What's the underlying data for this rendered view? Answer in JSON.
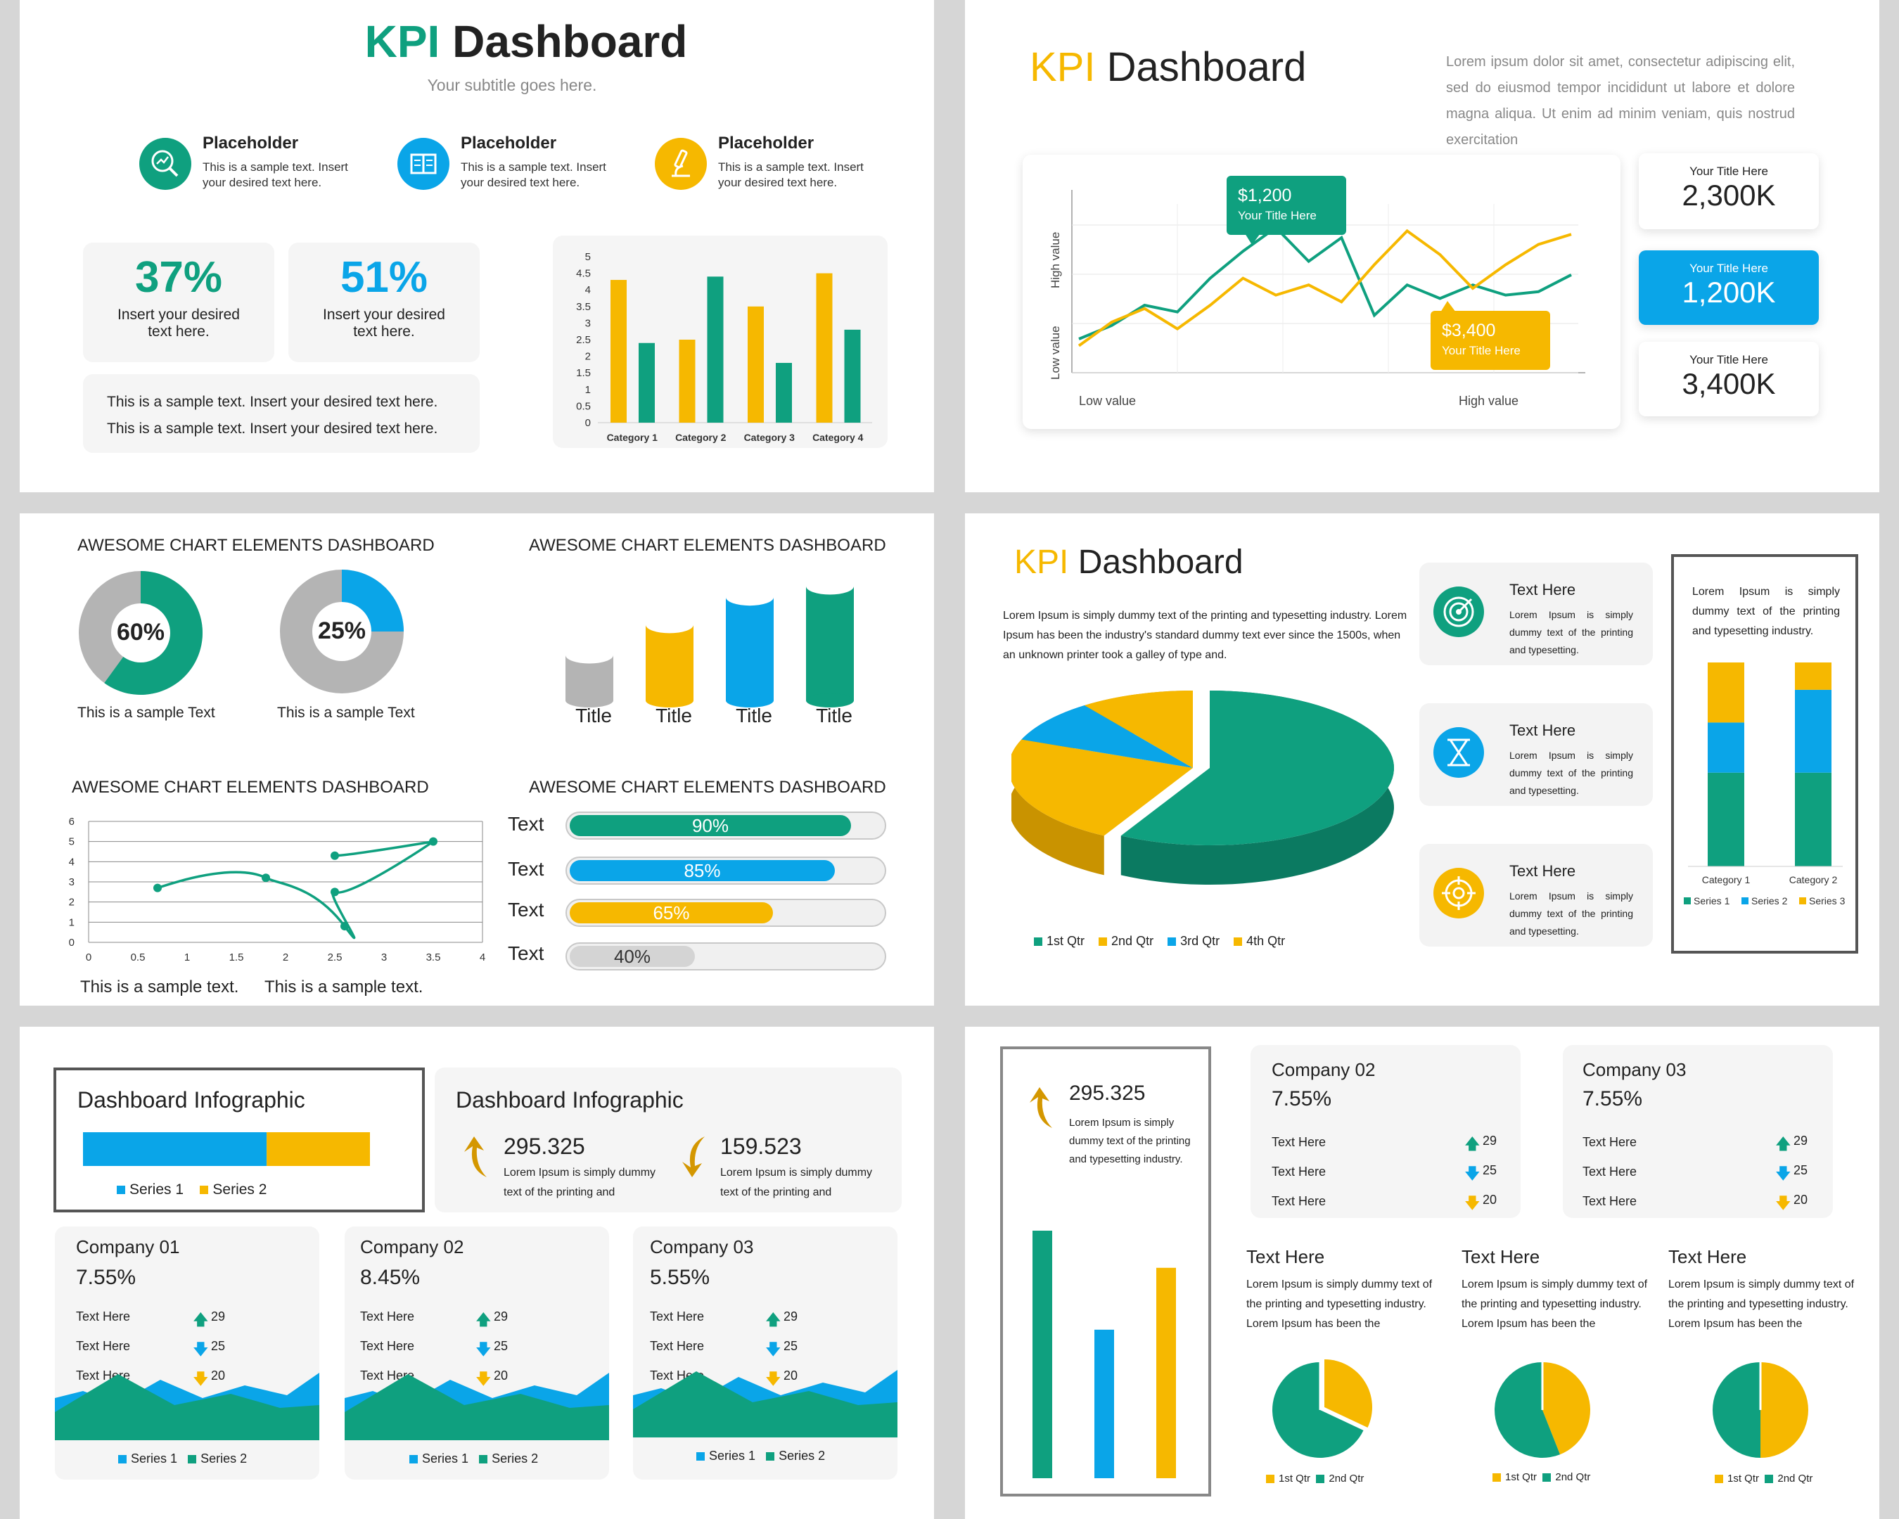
{
  "colors": {
    "green": "#0fa07f",
    "yellow": "#f6b800",
    "blue": "#0aa5e8",
    "gray": "#b4b4b4",
    "dark": "#222222"
  },
  "s1": {
    "title_accent": "KPI",
    "title_rest": "Dashboard",
    "subtitle": "Your subtitle goes here.",
    "placeholders": [
      {
        "icon": "magnifier-chart-icon",
        "title": "Placeholder",
        "text1": "This is a sample text. Insert",
        "text2": "your desired text here."
      },
      {
        "icon": "book-icon",
        "title": "Placeholder",
        "text1": "This is a sample text. Insert",
        "text2": "your desired text here."
      },
      {
        "icon": "microscope-icon",
        "title": "Placeholder",
        "text1": "This is a sample text. Insert",
        "text2": "your desired text here."
      }
    ],
    "stats": [
      {
        "value": "37%",
        "line1": "Insert your desired",
        "line2": "text here."
      },
      {
        "value": "51%",
        "line1": "Insert your desired",
        "line2": "text here."
      }
    ],
    "note1": "This is a sample text. Insert your desired text here.",
    "note2": "This is a sample text. Insert your desired text here."
  },
  "s2": {
    "title_accent": "KPI",
    "title_rest": "Dashboard",
    "lorem": "Lorem ipsum dolor sit amet, consectetur adipiscing elit, sed do eiusmod tempor incididunt ut labore et dolore magna aliqua. Ut enim ad minim veniam, quis nostrud exercitation",
    "callout1": {
      "value": "$1,200",
      "label": "Your Title Here"
    },
    "callout2": {
      "value": "$3,400",
      "label": "Your Title Here"
    },
    "ylabel_high": "High value",
    "ylabel_low": "Low value",
    "xlabel_low": "Low value",
    "xlabel_high": "High value",
    "kpis": [
      {
        "label": "Your Title Here",
        "value": "2,300K"
      },
      {
        "label": "Your Title Here",
        "value": "1,200K"
      },
      {
        "label": "Your Title Here",
        "value": "3,400K"
      }
    ]
  },
  "s3": {
    "heading1": "AWESOME CHART ELEMENTS DASHBOARD",
    "heading2": "AWESOME CHART ELEMENTS DASHBOARD",
    "heading3": "AWESOME CHART ELEMENTS DASHBOARD",
    "heading4": "AWESOME CHART ELEMENTS DASHBOARD",
    "donuts": [
      {
        "label": "60%",
        "value": 0.6,
        "caption": "This is a sample Text"
      },
      {
        "label": "25%",
        "value": 0.25,
        "caption": "This is a sample Text"
      }
    ],
    "cylinder_titles": [
      "Title",
      "Title",
      "Title",
      "Title"
    ],
    "scatter_caption1": "This is a sample text.",
    "scatter_caption2": "This is a sample text.",
    "bars": [
      {
        "label": "Text",
        "value": "90%",
        "pct": 0.9
      },
      {
        "label": "Text",
        "value": "85%",
        "pct": 0.85
      },
      {
        "label": "Text",
        "value": "65%",
        "pct": 0.65
      },
      {
        "label": "Text",
        "value": "40%",
        "pct": 0.4
      }
    ]
  },
  "s4": {
    "title_accent": "KPI",
    "title_rest": "Dashboard",
    "intro": "Lorem Ipsum is simply dummy text of the printing and typesetting industry. Lorem Ipsum has been the industry's standard dummy text ever since the 1500s, when an unknown printer took a galley of type and.",
    "items": [
      {
        "icon": "target-icon",
        "title": "Text Here",
        "text": "Lorem Ipsum is simply dummy text of the printing and typesetting."
      },
      {
        "icon": "hourglass-icon",
        "title": "Text Here",
        "text": "Lorem Ipsum is simply dummy text of the printing and typesetting."
      },
      {
        "icon": "crosshair-icon",
        "title": "Text Here",
        "text": "Lorem Ipsum is simply dummy text of the printing and typesetting."
      }
    ],
    "side_text": "Lorem Ipsum is simply dummy text of the printing and typesetting industry."
  },
  "s5": {
    "box1_title": "Dashboard Infographic",
    "box2_title": "Dashboard Infographic",
    "metric1": {
      "value": "295.325",
      "text": "Lorem Ipsum is simply dummy text of the printing and"
    },
    "metric2": {
      "value": "159.523",
      "text": "Lorem Ipsum is simply dummy text of the printing and"
    },
    "companies": [
      {
        "name": "Company 01",
        "pct": "7.55%",
        "rows": [
          {
            "label": "Text Here",
            "val": "29"
          },
          {
            "label": "Text Here",
            "val": "25"
          },
          {
            "label": "Text Here",
            "val": "20"
          }
        ]
      },
      {
        "name": "Company 02",
        "pct": "8.45%",
        "rows": [
          {
            "label": "Text Here",
            "val": "29"
          },
          {
            "label": "Text Here",
            "val": "25"
          },
          {
            "label": "Text Here",
            "val": "20"
          }
        ]
      },
      {
        "name": "Company 03",
        "pct": "5.55%",
        "rows": [
          {
            "label": "Text Here",
            "val": "29"
          },
          {
            "label": "Text Here",
            "val": "25"
          },
          {
            "label": "Text Here",
            "val": "20"
          }
        ]
      }
    ],
    "legend_s1": "Series 1",
    "legend_s2": "Series 2"
  },
  "s6": {
    "left_value": "295.325",
    "left_text": "Lorem Ipsum is simply dummy text of the printing and typesetting industry.",
    "companies": [
      {
        "name": "Company 02",
        "pct": "7.55%",
        "rows": [
          {
            "label": "Text Here",
            "val": "29"
          },
          {
            "label": "Text Here",
            "val": "25"
          },
          {
            "label": "Text Here",
            "val": "20"
          }
        ]
      },
      {
        "name": "Company 03",
        "pct": "7.55%",
        "rows": [
          {
            "label": "Text Here",
            "val": "29"
          },
          {
            "label": "Text Here",
            "val": "25"
          },
          {
            "label": "Text Here",
            "val": "20"
          }
        ]
      }
    ],
    "text_blocks": [
      {
        "title": "Text Here",
        "text": "Lorem Ipsum is simply dummy text of the printing and typesetting industry. Lorem Ipsum has been the"
      },
      {
        "title": "Text Here",
        "text": "Lorem Ipsum is simply dummy text of the printing and typesetting industry. Lorem Ipsum has been the"
      },
      {
        "title": "Text Here",
        "text": "Lorem Ipsum is simply dummy text of the printing and typesetting industry. Lorem Ipsum has been the"
      }
    ],
    "pie_legend1": "1st Qtr",
    "pie_legend2": "2nd Qtr"
  },
  "chart_data": [
    {
      "id": "s1-bar",
      "type": "bar",
      "categories": [
        "Category 1",
        "Category 2",
        "Category 3",
        "Category 4"
      ],
      "series": [
        {
          "values": [
            4.3,
            2.5,
            3.5,
            4.5
          ],
          "color": "#f6b800"
        },
        {
          "values": [
            2.4,
            4.4,
            1.8,
            2.8
          ],
          "color": "#0fa07f"
        }
      ],
      "ylim": [
        0,
        5
      ],
      "yticks": [
        "5",
        "4.5",
        "4",
        "3.5",
        "3",
        "2.5",
        "2",
        "1.5",
        "1",
        "0.5",
        "0"
      ]
    },
    {
      "id": "s2-line",
      "type": "line",
      "series": [
        {
          "color": "#0fa07f",
          "values": [
            2,
            2.8,
            4,
            3.6,
            5.6,
            7.2,
            8.6,
            6.6,
            8,
            3.4,
            5.2,
            4.4,
            5.2,
            4.6,
            4.8,
            5.8
          ]
        },
        {
          "color": "#f6b800",
          "values": [
            1.6,
            3,
            3.8,
            2.6,
            4,
            5.6,
            4.6,
            5.2,
            4.2,
            6.4,
            8.4,
            7,
            5,
            6.4,
            7.6,
            8.2
          ]
        }
      ]
    },
    {
      "id": "s3-cylinders",
      "type": "bar",
      "categories": [
        "Title",
        "Title",
        "Title",
        "Title"
      ],
      "values": [
        0.38,
        0.6,
        0.8,
        0.88
      ],
      "colors": [
        "#b4b4b4",
        "#f6b800",
        "#0aa5e8",
        "#0fa07f"
      ]
    },
    {
      "id": "s3-scatter",
      "type": "scatter",
      "points": [
        [
          0.7,
          2.7
        ],
        [
          1.8,
          3.2
        ],
        [
          2.5,
          2.5
        ],
        [
          2.6,
          0.8
        ],
        [
          2.5,
          4.3
        ],
        [
          3.5,
          5.0
        ]
      ],
      "xticks": [
        "0",
        "0.5",
        "1",
        "1.5",
        "2",
        "2.5",
        "3",
        "3.5",
        "4"
      ],
      "yticks": [
        "6",
        "5",
        "4",
        "3",
        "2",
        "1",
        "0"
      ],
      "xlim": [
        0,
        4
      ],
      "ylim": [
        0,
        6
      ]
    },
    {
      "id": "s4-pie",
      "type": "pie",
      "labels": [
        "1st Qtr",
        "2nd Qtr",
        "3rd Qtr",
        "4th Qtr"
      ],
      "values": [
        58,
        23,
        9,
        10
      ],
      "colors": [
        "#0fa07f",
        "#f6b800",
        "#0aa5e8",
        "#f6b800"
      ]
    },
    {
      "id": "s4-stacked",
      "type": "bar",
      "categories": [
        "Category 1",
        "Category 2"
      ],
      "series": [
        {
          "name": "Series 1",
          "values": [
            4.3,
            4.3
          ],
          "color": "#0fa07f"
        },
        {
          "name": "Series 2",
          "values": [
            2.3,
            3.8
          ],
          "color": "#0aa5e8"
        },
        {
          "name": "Series 3",
          "values": [
            3.4,
            1.9
          ],
          "color": "#f6b800"
        }
      ]
    },
    {
      "id": "s5-hbar",
      "type": "bar",
      "series": [
        {
          "name": "Series 1",
          "values": [
            0.64
          ],
          "color": "#0aa5e8"
        },
        {
          "name": "Series 2",
          "values": [
            0.36
          ],
          "color": "#f6b800"
        }
      ]
    },
    {
      "id": "s6-bars",
      "type": "bar",
      "values": [
        0.8,
        0.48,
        0.68
      ],
      "colors": [
        "#0fa07f",
        "#0aa5e8",
        "#f6b800"
      ]
    },
    {
      "id": "s6-pies",
      "type": "pie",
      "labels": [
        "1st Qtr",
        "2nd Qtr"
      ],
      "pies": [
        [
          0.68,
          0.32
        ],
        [
          0.56,
          0.44
        ],
        [
          0.5,
          0.5
        ]
      ],
      "colors": [
        "#0fa07f",
        "#f6b800"
      ]
    }
  ]
}
